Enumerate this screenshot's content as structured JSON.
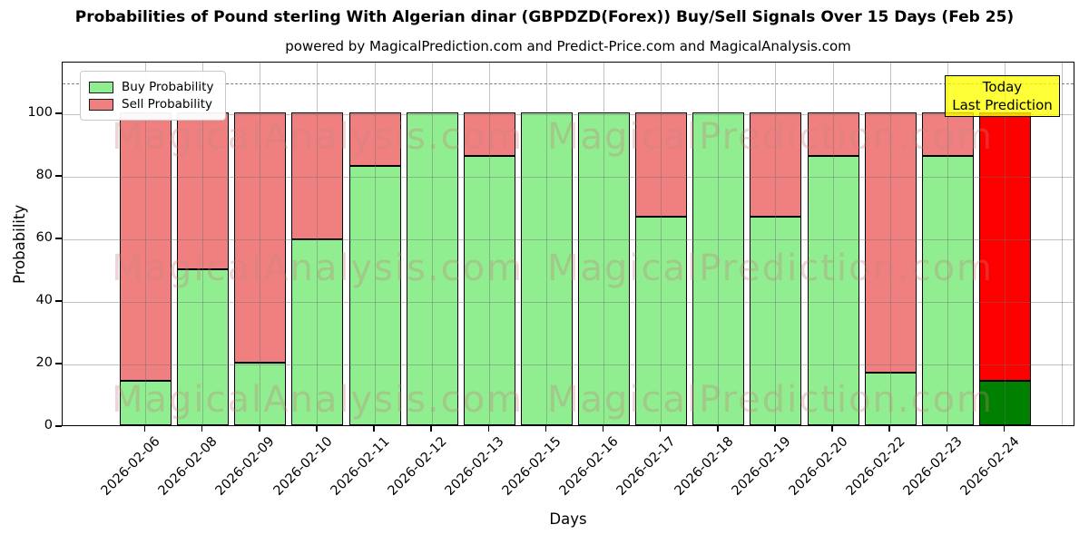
{
  "title": "Probabilities of Pound sterling With Algerian dinar (GBPDZD(Forex)) Buy/Sell Signals Over 15 Days (Feb 25)",
  "subtitle": "powered by MagicalPrediction.com and Predict-Price.com and MagicalAnalysis.com",
  "annotation": {
    "line1": "Today",
    "line2": "Last Prediction",
    "bg_color": "#ffff00"
  },
  "watermarks": {
    "left_text": "MagicalAnalysis.com",
    "right_text": "MagicalPrediction.com"
  },
  "legend": {
    "items": [
      {
        "label": "Buy Probability",
        "color": "#90ee90"
      },
      {
        "label": "Sell Probability",
        "color": "#f08080"
      }
    ]
  },
  "chart_data": {
    "type": "bar",
    "stacked": true,
    "title": "Probabilities of Pound sterling With Algerian dinar (GBPDZD(Forex)) Buy/Sell Signals Over 15 Days (Feb 25)",
    "xlabel": "Days",
    "ylabel": "Probability",
    "ylim": [
      0,
      116.5
    ],
    "yticks": [
      0,
      20,
      40,
      60,
      80,
      100
    ],
    "grid": true,
    "dashed_guide_y": 110,
    "legend_position": "upper left",
    "categories": [
      "2026-02-06",
      "2026-02-08",
      "2026-02-09",
      "2026-02-10",
      "2026-02-11",
      "2026-02-12",
      "2026-02-13",
      "2026-02-15",
      "2026-02-16",
      "2026-02-17",
      "2026-02-18",
      "2026-02-19",
      "2026-02-20",
      "2026-02-22",
      "2026-02-23",
      "2026-02-24"
    ],
    "series": [
      {
        "name": "Buy Probability",
        "color": "#90ee90",
        "values": [
          14.3,
          50,
          20,
          59.5,
          83,
          100,
          86,
          100,
          100,
          66.7,
          100,
          66.7,
          86,
          16.7,
          86,
          14.3
        ]
      },
      {
        "name": "Sell Probability",
        "color": "#f08080",
        "values": [
          85.7,
          50,
          80,
          40.5,
          17,
          0,
          14,
          0,
          0,
          33.3,
          0,
          33.3,
          14,
          83.3,
          14,
          85.7
        ]
      }
    ],
    "last_bar_colors": {
      "buy": "#008000",
      "sell": "#ff0000"
    },
    "bar_edge_color": "#000000"
  }
}
